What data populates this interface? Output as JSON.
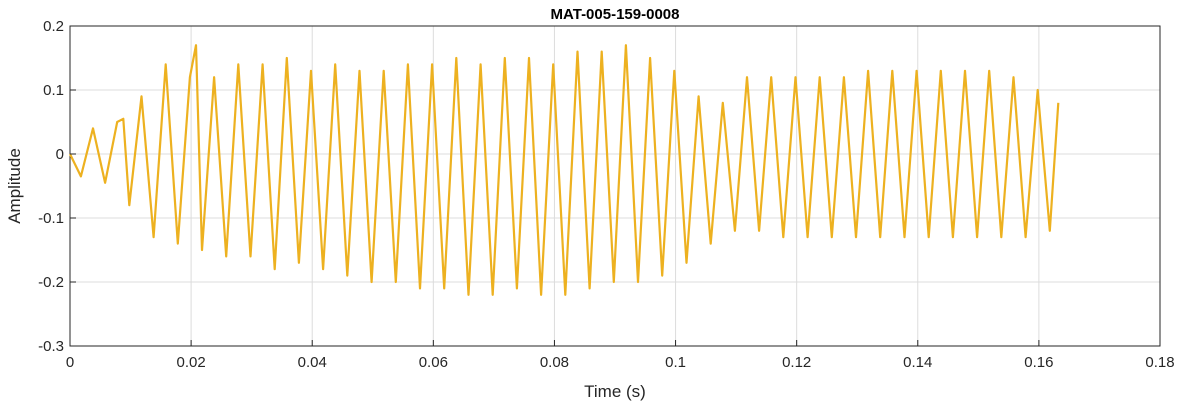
{
  "chart_data": {
    "type": "line",
    "title": "MAT-005-159-0008",
    "xlabel": "Time (s)",
    "ylabel": "Amplitude",
    "xlim": [
      0,
      0.18
    ],
    "ylim": [
      -0.3,
      0.2
    ],
    "xticks": [
      0,
      0.02,
      0.04,
      0.06,
      0.08,
      0.1,
      0.12,
      0.14,
      0.16,
      0.18
    ],
    "xtick_labels": [
      "0",
      "0.02",
      "0.04",
      "0.06",
      "0.08",
      "0.1",
      "0.12",
      "0.14",
      "0.16",
      "0.18"
    ],
    "yticks": [
      -0.3,
      -0.2,
      -0.1,
      0,
      0.1,
      0.2
    ],
    "ytick_labels": [
      "-0.3",
      "-0.2",
      "-0.1",
      "0",
      "0.1",
      "0.2"
    ],
    "grid": true,
    "legend": "none",
    "series": [
      {
        "color": "#EDB120",
        "x": [
          0,
          0.0018,
          0.0038,
          0.0058,
          0.0078,
          0.0088,
          0.0098,
          0.0118,
          0.0138,
          0.0158,
          0.0178,
          0.0198,
          0.0208,
          0.0218,
          0.0238,
          0.0258,
          0.0278,
          0.0298,
          0.0318,
          0.0338,
          0.0358,
          0.0378,
          0.0398,
          0.0418,
          0.0438,
          0.0458,
          0.0478,
          0.0498,
          0.0518,
          0.0538,
          0.0558,
          0.0578,
          0.0598,
          0.0618,
          0.0638,
          0.0658,
          0.0678,
          0.0698,
          0.0718,
          0.0738,
          0.0758,
          0.0778,
          0.0798,
          0.0818,
          0.0838,
          0.0858,
          0.0878,
          0.0898,
          0.0918,
          0.0938,
          0.0958,
          0.0978,
          0.0998,
          0.1018,
          0.1038,
          0.1058,
          0.1078,
          0.1098,
          0.1118,
          0.1138,
          0.1158,
          0.1178,
          0.1198,
          0.1218,
          0.1238,
          0.1258,
          0.1278,
          0.1298,
          0.1318,
          0.1338,
          0.1358,
          0.1378,
          0.1398,
          0.1418,
          0.1438,
          0.1458,
          0.1478,
          0.1498,
          0.1518,
          0.1538,
          0.1558,
          0.1578,
          0.1598,
          0.1618,
          0.1632
        ],
        "y": [
          0,
          -0.035,
          0.04,
          -0.045,
          0.05,
          0.055,
          -0.08,
          0.09,
          -0.13,
          0.14,
          -0.14,
          0.12,
          0.17,
          -0.15,
          0.12,
          -0.16,
          0.14,
          -0.16,
          0.14,
          -0.18,
          0.15,
          -0.17,
          0.13,
          -0.18,
          0.14,
          -0.19,
          0.13,
          -0.2,
          0.13,
          -0.2,
          0.14,
          -0.21,
          0.14,
          -0.21,
          0.15,
          -0.22,
          0.14,
          -0.22,
          0.15,
          -0.21,
          0.15,
          -0.22,
          0.14,
          -0.22,
          0.16,
          -0.21,
          0.16,
          -0.2,
          0.17,
          -0.2,
          0.15,
          -0.19,
          0.13,
          -0.17,
          0.09,
          -0.14,
          0.08,
          -0.12,
          0.12,
          -0.12,
          0.12,
          -0.13,
          0.12,
          -0.13,
          0.12,
          -0.13,
          0.12,
          -0.13,
          0.13,
          -0.13,
          0.13,
          -0.13,
          0.13,
          -0.13,
          0.13,
          -0.13,
          0.13,
          -0.13,
          0.13,
          -0.13,
          0.12,
          -0.13,
          0.1,
          -0.12,
          0.08
        ]
      }
    ]
  }
}
